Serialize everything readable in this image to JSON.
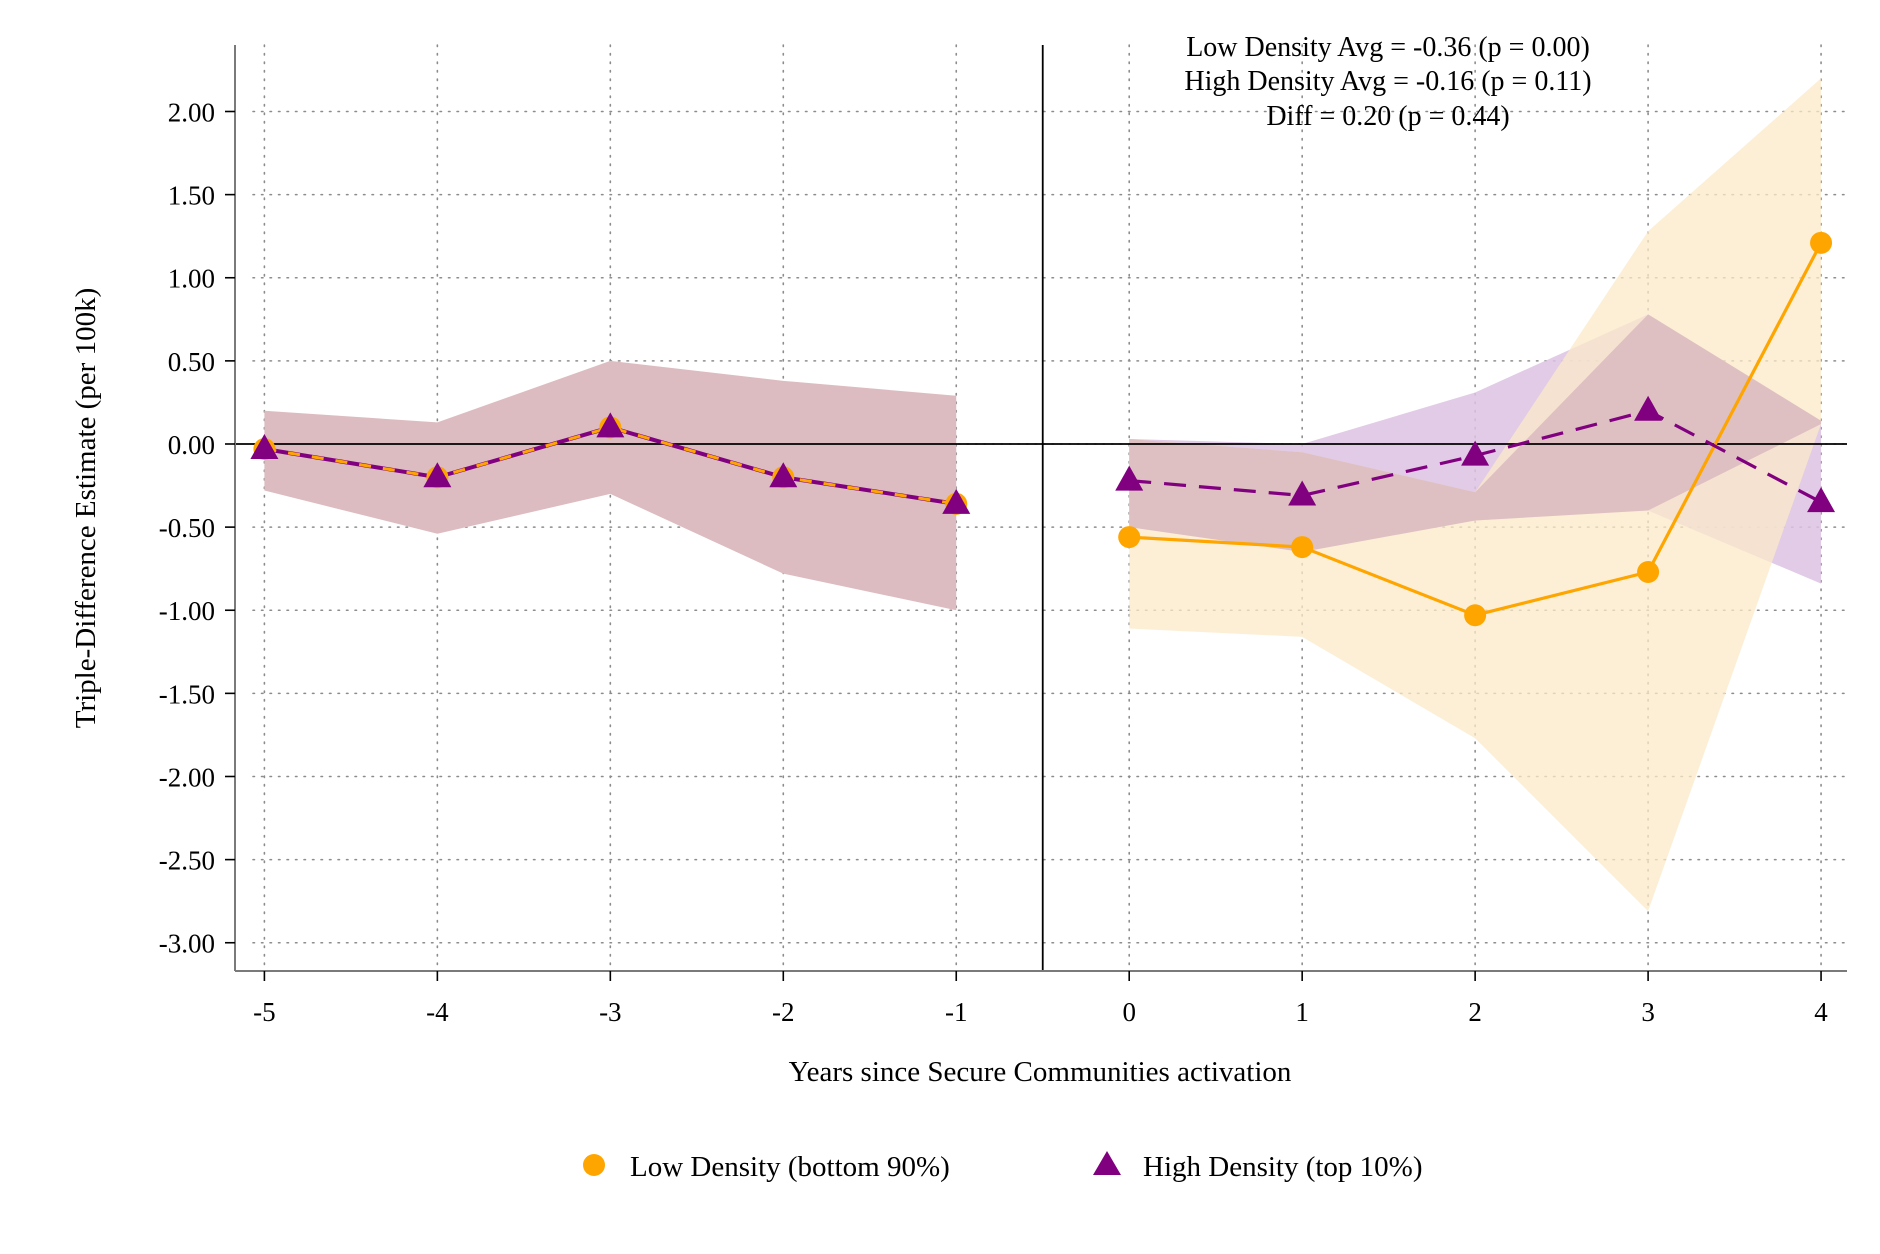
{
  "chart_data": {
    "type": "line",
    "title": "",
    "xlabel": "Years since Secure Communities activation",
    "ylabel": "Triple-Difference Estimate (per 100k)",
    "x_ticks": [
      -5,
      -4,
      -3,
      -2,
      -1,
      0,
      1,
      2,
      3,
      4
    ],
    "y_ticks": [
      2.0,
      1.5,
      1.0,
      0.5,
      0.0,
      -0.5,
      -1.0,
      -1.5,
      -2.0,
      -2.5,
      -3.0
    ],
    "xlim": [
      -5.17,
      4.15
    ],
    "ylim": [
      -3.17,
      2.4
    ],
    "grid": true,
    "reference_lines": {
      "y_zero": true,
      "x_vertical": -0.5
    },
    "annotations": [
      "Low Density Avg = -0.36 (p = 0.00)",
      "High Density Avg = -0.16 (p = 0.11)",
      "Diff = 0.20 (p = 0.44)"
    ],
    "legend": {
      "placement": "bottom",
      "entries": [
        "Low Density (bottom 90%)",
        "High Density (top 10%)"
      ]
    },
    "series": [
      {
        "name": "Low Density (bottom 90%)",
        "color": "#ffa500",
        "band_color": "#fbe9c8",
        "marker": "circle",
        "x": [
          -5,
          -4,
          -3,
          -2,
          -1,
          0,
          1,
          2,
          3,
          4
        ],
        "y": [
          -0.03,
          -0.2,
          0.1,
          -0.2,
          -0.36,
          -0.56,
          -0.62,
          -1.03,
          -0.77,
          1.21
        ],
        "ci_low": [
          -0.28,
          -0.54,
          -0.3,
          -0.78,
          -1.0,
          -1.11,
          -1.16,
          -1.77,
          -2.81,
          0.12
        ],
        "ci_high": [
          0.2,
          0.13,
          0.5,
          0.38,
          0.29,
          0.03,
          -0.05,
          -0.29,
          1.28,
          2.2
        ]
      },
      {
        "name": "High Density (top 10%)",
        "color": "#800080",
        "band_color": "#dcc2e2",
        "marker": "triangle",
        "x": [
          -5,
          -4,
          -3,
          -2,
          -1,
          0,
          1,
          2,
          3,
          4
        ],
        "y": [
          -0.03,
          -0.2,
          0.1,
          -0.2,
          -0.36,
          -0.22,
          -0.31,
          -0.07,
          0.2,
          -0.35
        ],
        "ci_low": [
          -0.28,
          -0.54,
          -0.3,
          -0.78,
          -1.0,
          -0.5,
          -0.65,
          -0.46,
          -0.4,
          -0.84
        ],
        "ci_high": [
          0.2,
          0.13,
          0.5,
          0.38,
          0.29,
          0.03,
          0.0,
          0.31,
          0.78,
          0.14
        ]
      }
    ]
  }
}
